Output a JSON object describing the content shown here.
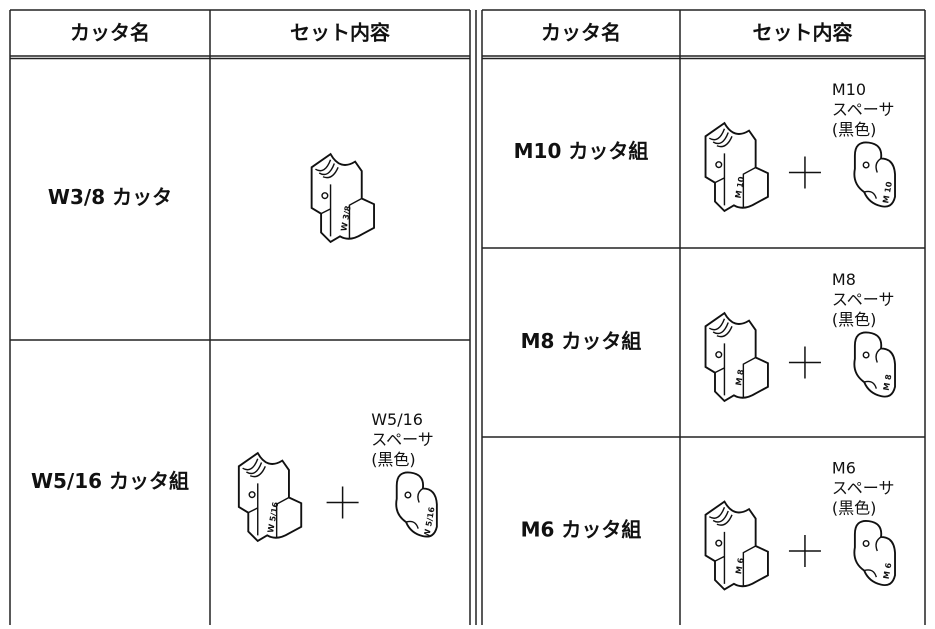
{
  "left_table": {
    "headers": [
      "カッタ名",
      "セット内容"
    ],
    "rows": [
      {
        "name": "W3/8 カッタ",
        "cutter_mark": "W 3/8"
      },
      {
        "name": "W5/16 カッタ組",
        "cutter_mark": "W 5/16",
        "spacer_mark": "W 5/16",
        "spacer_label": [
          "W5/16",
          "スペーサ",
          "(黒色)"
        ]
      }
    ]
  },
  "right_table": {
    "headers": [
      "カッタ名",
      "セット内容"
    ],
    "rows": [
      {
        "name": "M10 カッタ組",
        "cutter_mark": "M 10",
        "spacer_mark": "M 10",
        "spacer_label": [
          "M10",
          "スペーサ",
          "(黒色)"
        ]
      },
      {
        "name": "M8 カッタ組",
        "cutter_mark": "M 8",
        "spacer_mark": "M 8",
        "spacer_label": [
          "M8",
          "スペーサ",
          "(黒色)"
        ]
      },
      {
        "name": "M6 カッタ組",
        "cutter_mark": "M 6",
        "spacer_mark": "M 6",
        "spacer_label": [
          "M6",
          "スペーサ",
          "(黒色)"
        ]
      }
    ]
  }
}
